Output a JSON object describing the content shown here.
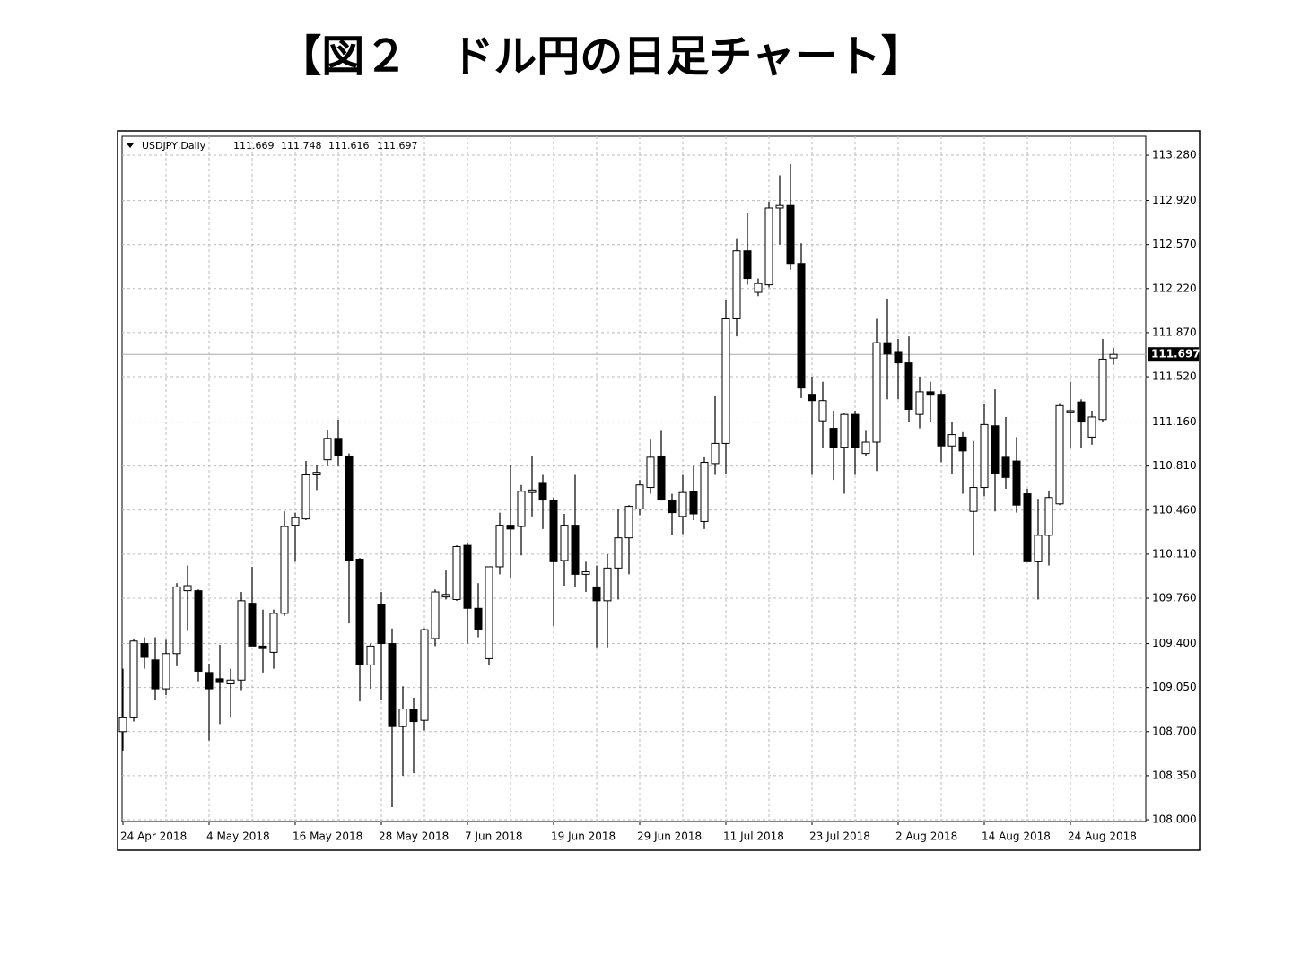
{
  "title": "【図２　ドル円の日足チャート】",
  "chart_data": {
    "type": "candlestick",
    "symbol_label": "USDJPY,Daily",
    "categories": [
      "24 Apr 2018",
      null,
      null,
      null,
      null,
      null,
      null,
      null,
      "4 May 2018",
      null,
      null,
      null,
      null,
      null,
      null,
      null,
      "16 May 2018",
      null,
      null,
      null,
      null,
      null,
      null,
      null,
      "28 May 2018",
      null,
      null,
      null,
      null,
      null,
      null,
      null,
      "7 Jun 2018",
      null,
      null,
      null,
      null,
      null,
      null,
      null,
      "19 Jun 2018",
      null,
      null,
      null,
      null,
      null,
      null,
      null,
      "29 Jun 2018",
      null,
      null,
      null,
      null,
      null,
      null,
      null,
      "11 Jul 2018",
      null,
      null,
      null,
      null,
      null,
      null,
      null,
      "23 Jul 2018",
      null,
      null,
      null,
      null,
      null,
      null,
      null,
      "2 Aug 2018",
      null,
      null,
      null,
      null,
      null,
      null,
      null,
      "14 Aug 2018",
      null,
      null,
      null,
      null,
      null,
      null,
      null,
      "24 Aug 2018",
      null,
      null,
      null,
      null
    ],
    "open": [
      108.7,
      108.81,
      109.4,
      109.27,
      109.04,
      109.32,
      109.82,
      109.82,
      109.17,
      109.12,
      109.08,
      109.11,
      109.72,
      109.38,
      109.33,
      109.64,
      110.34,
      110.39,
      110.74,
      110.86,
      111.03,
      110.89,
      110.07,
      109.23,
      109.71,
      109.4,
      108.74,
      108.88,
      108.79,
      109.44,
      109.77,
      109.75,
      110.18,
      109.68,
      109.28,
      110.01,
      110.34,
      110.33,
      110.6,
      110.68,
      110.54,
      110.06,
      110.34,
      109.95,
      109.85,
      109.74,
      110.0,
      110.24,
      110.47,
      110.64,
      110.89,
      110.54,
      110.41,
      110.61,
      110.37,
      110.83,
      110.99,
      111.98,
      112.52,
      112.19,
      112.25,
      112.86,
      112.88,
      112.42,
      111.38,
      111.17,
      111.11,
      110.96,
      111.22,
      110.91,
      111.0,
      111.79,
      111.72,
      111.63,
      111.22,
      111.4,
      111.38,
      110.97,
      111.04,
      110.45,
      110.64,
      111.13,
      110.88,
      110.85,
      110.59,
      110.05,
      110.26,
      110.51,
      111.24,
      111.32,
      111.04,
      111.18,
      111.669
    ],
    "high": [
      109.2,
      109.44,
      109.45,
      109.45,
      109.43,
      109.88,
      110.02,
      109.83,
      109.24,
      109.39,
      109.2,
      109.81,
      110.01,
      109.67,
      109.67,
      110.45,
      110.44,
      110.85,
      110.82,
      111.1,
      111.18,
      110.91,
      110.08,
      109.4,
      109.81,
      109.52,
      109.06,
      108.97,
      109.52,
      109.83,
      109.98,
      110.18,
      110.2,
      109.88,
      110.01,
      110.44,
      110.82,
      110.66,
      110.89,
      110.74,
      110.56,
      110.43,
      110.74,
      110.05,
      110.02,
      110.11,
      110.47,
      110.5,
      110.7,
      111.02,
      111.09,
      110.59,
      110.74,
      110.81,
      110.88,
      111.37,
      112.13,
      112.62,
      112.82,
      112.3,
      112.91,
      113.12,
      113.21,
      112.58,
      111.52,
      111.48,
      111.25,
      111.23,
      111.25,
      111.09,
      111.98,
      112.14,
      111.82,
      111.84,
      111.52,
      111.48,
      111.41,
      111.16,
      111.08,
      111.01,
      111.3,
      111.42,
      111.2,
      111.04,
      110.63,
      110.55,
      110.61,
      111.31,
      111.48,
      111.34,
      111.25,
      111.82,
      111.748
    ],
    "low": [
      108.55,
      108.78,
      109.2,
      108.95,
      108.99,
      109.22,
      109.5,
      109.1,
      108.63,
      108.76,
      108.81,
      109.03,
      109.38,
      109.17,
      109.2,
      109.62,
      110.05,
      110.38,
      110.62,
      110.81,
      110.81,
      109.56,
      108.94,
      109.04,
      108.95,
      108.1,
      108.35,
      108.37,
      108.71,
      109.38,
      109.75,
      109.74,
      109.4,
      109.45,
      109.23,
      109.95,
      109.92,
      110.1,
      110.41,
      110.31,
      109.54,
      109.86,
      109.85,
      109.81,
      109.37,
      109.37,
      109.75,
      109.95,
      110.42,
      110.59,
      110.54,
      110.26,
      110.27,
      110.38,
      110.31,
      110.74,
      110.75,
      111.84,
      112.25,
      112.16,
      112.23,
      112.57,
      112.37,
      111.35,
      110.74,
      110.95,
      110.7,
      110.59,
      110.74,
      110.89,
      110.77,
      111.34,
      111.34,
      111.16,
      111.11,
      111.16,
      110.84,
      110.75,
      110.59,
      110.1,
      110.57,
      110.45,
      110.63,
      110.44,
      110.05,
      109.75,
      110.02,
      110.5,
      110.95,
      110.95,
      110.98,
      111.16,
      111.616
    ],
    "close": [
      108.81,
      109.42,
      109.29,
      109.04,
      109.32,
      109.85,
      109.86,
      109.18,
      109.04,
      109.09,
      109.11,
      109.74,
      109.38,
      109.36,
      109.64,
      110.33,
      110.4,
      110.74,
      110.76,
      111.03,
      110.89,
      110.06,
      109.23,
      109.38,
      109.4,
      108.74,
      108.88,
      108.78,
      109.51,
      109.81,
      109.79,
      110.17,
      109.68,
      109.51,
      110.01,
      110.34,
      110.31,
      110.61,
      110.62,
      110.54,
      110.05,
      110.34,
      109.95,
      109.97,
      109.74,
      110.0,
      110.24,
      110.49,
      110.66,
      110.88,
      110.54,
      110.44,
      110.6,
      110.43,
      110.84,
      110.99,
      111.98,
      112.52,
      112.3,
      112.26,
      112.86,
      112.88,
      112.42,
      111.43,
      111.33,
      111.33,
      110.96,
      111.22,
      110.96,
      111.0,
      111.79,
      111.7,
      111.63,
      111.26,
      111.4,
      111.38,
      110.97,
      111.06,
      110.93,
      110.64,
      111.14,
      110.75,
      110.72,
      110.5,
      110.05,
      110.26,
      110.56,
      111.29,
      111.25,
      111.16,
      111.2,
      111.66,
      111.697
    ],
    "up_color": "#ffffff",
    "down_color": "#000000",
    "outline_color": "#000000",
    "ylim": [
      107.986,
      113.43
    ],
    "yticks": [
      {
        "value": 108,
        "label": "108.000"
      },
      {
        "value": 108.35,
        "label": "108.350"
      },
      {
        "value": 108.7,
        "label": "108.700"
      },
      {
        "value": 109.05,
        "label": "109.050"
      },
      {
        "value": 109.4,
        "label": "109.400"
      },
      {
        "value": 109.76,
        "label": "109.760"
      },
      {
        "value": 110.11,
        "label": "110.110"
      },
      {
        "value": 110.46,
        "label": "110.460"
      },
      {
        "value": 110.81,
        "label": "110.810"
      },
      {
        "value": 111.16,
        "label": "111.160"
      },
      {
        "value": 111.52,
        "label": "111.520"
      },
      {
        "value": 111.87,
        "label": "111.870"
      },
      {
        "value": 112.22,
        "label": "112.220"
      },
      {
        "value": 112.57,
        "label": "112.570"
      },
      {
        "value": 112.92,
        "label": "112.920"
      },
      {
        "value": 113.28,
        "label": "113.280"
      }
    ],
    "grid": true
  }
}
